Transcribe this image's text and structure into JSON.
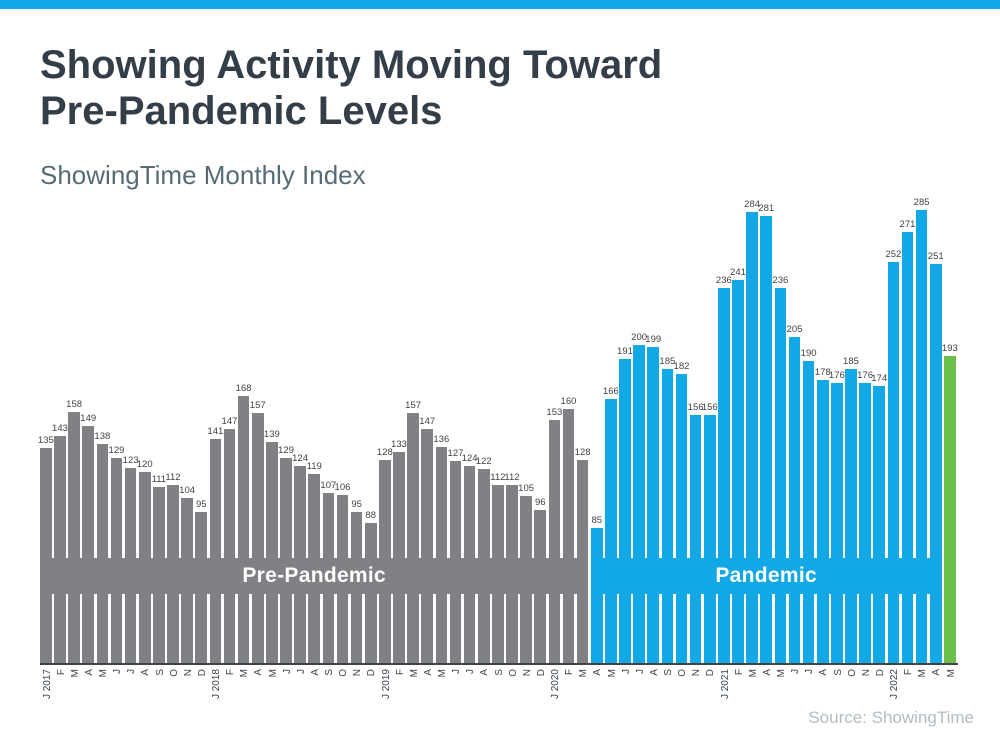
{
  "page": {
    "title_line1": "Showing Activity Moving Toward",
    "title_line2": "Pre-Pandemic Levels",
    "subtitle": "ShowingTime Monthly Index",
    "source": "Source: ShowingTime"
  },
  "colors": {
    "accent_blue": "#12A8E6",
    "bar_gray": "#808184",
    "bar_blue": "#12A8E6",
    "bar_green": "#6CBE4B",
    "title_text": "#333E48",
    "subtitle_text": "#566B76",
    "band_text": "#FFFFFF",
    "source_text": "#B3BCC2"
  },
  "chart_data": {
    "type": "bar",
    "title": "Showing Activity Moving Toward Pre-Pandemic Levels",
    "subtitle": "ShowingTime Monthly Index",
    "xlabel": "",
    "ylabel": "",
    "ylim": [
      0,
      285
    ],
    "grid": false,
    "value_labels": true,
    "categories": [
      "J 2017",
      "F",
      "M",
      "A",
      "M",
      "J",
      "J",
      "A",
      "S",
      "O",
      "N",
      "D",
      "J 2018",
      "F",
      "M",
      "A",
      "M",
      "J",
      "J",
      "A",
      "S",
      "O",
      "N",
      "D",
      "J 2019",
      "F",
      "M",
      "A",
      "M",
      "J",
      "J",
      "A",
      "S",
      "O",
      "N",
      "D",
      "J 2020",
      "F",
      "M",
      "A",
      "M",
      "J",
      "J",
      "A",
      "S",
      "O",
      "N",
      "D",
      "J 2021",
      "F",
      "M",
      "A",
      "M",
      "J",
      "J",
      "A",
      "S",
      "O",
      "N",
      "D",
      "J 2022",
      "F",
      "M",
      "A",
      "M"
    ],
    "values": [
      135,
      143,
      158,
      149,
      138,
      129,
      123,
      120,
      111,
      112,
      104,
      95,
      141,
      147,
      168,
      157,
      139,
      129,
      124,
      119,
      107,
      106,
      95,
      88,
      128,
      133,
      157,
      147,
      136,
      127,
      124,
      122,
      112,
      112,
      105,
      96,
      153,
      160,
      128,
      85,
      166,
      191,
      200,
      199,
      185,
      182,
      156,
      156,
      236,
      241,
      284,
      281,
      236,
      205,
      190,
      178,
      176,
      185,
      176,
      174,
      252,
      271,
      285,
      251,
      193
    ],
    "group_ranges": {
      "pre": [
        0,
        38
      ],
      "pandemic": [
        39,
        63
      ],
      "current": [
        64,
        64
      ]
    },
    "group_colors": {
      "pre": "#808184",
      "pandemic": "#12A8E6",
      "current": "#6CBE4B"
    },
    "annotations": [
      {
        "label": "Pre-Pandemic",
        "group": "pre",
        "start_index": 0,
        "end_index": 38
      },
      {
        "label": "Pandemic",
        "group": "pandemic",
        "start_index": 39,
        "end_index": 63
      }
    ]
  }
}
